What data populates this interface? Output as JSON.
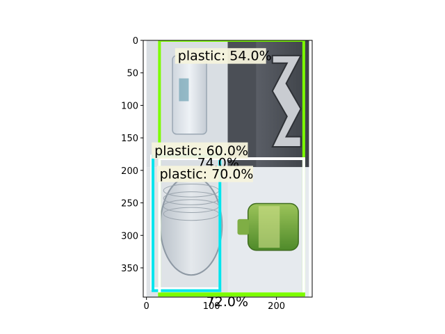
{
  "chart_data": {
    "type": "image-detections",
    "title": "",
    "xlabel": "",
    "ylabel": "",
    "xlim": [
      -5,
      255
    ],
    "ylim": [
      395,
      0
    ],
    "x_ticks": [
      0,
      100,
      200
    ],
    "y_ticks": [
      0,
      50,
      100,
      150,
      200,
      250,
      300,
      350
    ],
    "grid": false,
    "image_tiles": [
      {
        "name": "glass-jar-tile",
        "x0": 0,
        "y0": 0,
        "x1": 125,
        "y1": 195,
        "content": "clear plastic container"
      },
      {
        "name": "metal-part-tile",
        "x0": 125,
        "y0": 0,
        "x1": 250,
        "y1": 195,
        "content": "metal bracket"
      },
      {
        "name": "glass-bottle-tile",
        "x0": 0,
        "y0": 195,
        "x1": 125,
        "y1": 395,
        "content": "clear glass jar"
      },
      {
        "name": "green-bottle-tile",
        "x0": 125,
        "y0": 195,
        "x1": 250,
        "y1": 395,
        "content": "green plastic bottle"
      }
    ],
    "detections": [
      {
        "label": "plastic: 54.0%",
        "class": "plastic",
        "score": 54.0,
        "x0": 20,
        "y0": 0,
        "x1": 242,
        "y1": 390,
        "color": "#7cfc00",
        "label_x": 44,
        "label_y": 12,
        "label_w": 140,
        "label_h": 24
      },
      {
        "label": "plastic: 60.0%",
        "class": "plastic",
        "score": 60.0,
        "x0": 8,
        "y0": 178,
        "x1": 113,
        "y1": 382,
        "color": "#ffffff",
        "label_x": 8,
        "label_y": 157,
        "label_w": 148,
        "label_h": 25
      },
      {
        "label": "74.0%",
        "class": "",
        "score": 74.0,
        "x0": 10,
        "y0": 178,
        "x1": 113,
        "y1": 385,
        "color": "#00e5ee",
        "label_x": 78,
        "label_y": 178,
        "label_w": 0,
        "label_h": 0
      },
      {
        "label": "plastic: 70.0%",
        "class": "plastic",
        "score": 70.0,
        "x0": 20,
        "y0": 182,
        "x1": 242,
        "y1": 390,
        "color": "#ffffff",
        "label_x": 16,
        "label_y": 193,
        "label_w": 148,
        "label_h": 25
      },
      {
        "label": "72.0%",
        "class": "",
        "score": 72.0,
        "x0": 20,
        "y0": 390,
        "x1": 242,
        "y1": 392,
        "color": "#7cfc00",
        "label_x": 92,
        "label_y": 392,
        "label_w": 0,
        "label_h": 0
      }
    ]
  }
}
